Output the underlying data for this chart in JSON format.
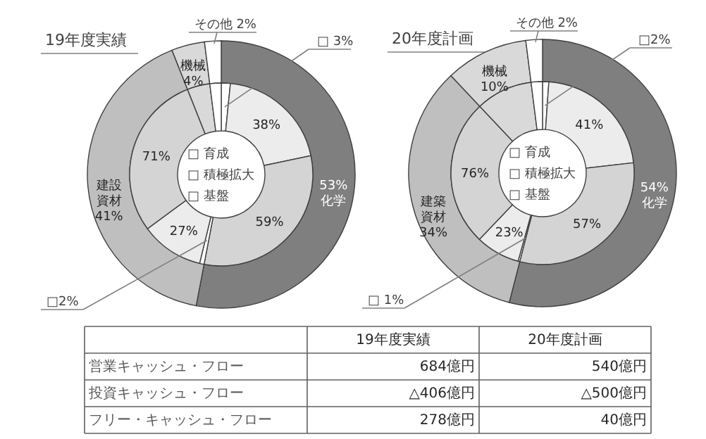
{
  "chart_data": [
    {
      "type": "donut",
      "title": "19年度実績",
      "series": [
        {
          "values": [
            53,
            41,
            4,
            2
          ],
          "colors": [
            "#7f7f7f",
            "#bfbfbf",
            "#d9d9d9",
            "#ffffff"
          ],
          "value_labels": [
            "53%",
            "41%",
            "4%",
            null
          ]
        },
        {
          "values": [
            1.6,
            20.1,
            31.3,
            0.8,
            11.1,
            29.1,
            4,
            2
          ],
          "colors": [
            "#ffffff",
            "#ececec",
            "#d4d4d4",
            "#ffffff",
            "#ececec",
            "#d4d4d4",
            "#d9d9d9",
            "#ffffff"
          ]
        }
      ],
      "annotations": [
        "化学",
        "建設資材",
        "機械",
        "その他 2%",
        "□ 3%",
        "38%",
        "59%",
        "□2%",
        "27%",
        "71%",
        "□ 育成",
        "□ 積極拡大",
        "□ 基盤"
      ]
    },
    {
      "type": "donut",
      "title": "20年度計画",
      "series": [
        {
          "values": [
            54,
            34,
            10,
            2
          ],
          "colors": [
            "#7f7f7f",
            "#bfbfbf",
            "#d9d9d9",
            "#ffffff"
          ],
          "value_labels": [
            "54%",
            "34%",
            "10%",
            null
          ]
        },
        {
          "values": [
            1.1,
            22.1,
            30.8,
            0.3,
            7.8,
            25.9,
            10,
            2
          ],
          "colors": [
            "#ffffff",
            "#ececec",
            "#d4d4d4",
            "#ffffff",
            "#ececec",
            "#d4d4d4",
            "#d9d9d9",
            "#ffffff"
          ]
        }
      ],
      "annotations": [
        "化学",
        "建築資材",
        "機械",
        "その他 2%",
        "□2%",
        "41%",
        "57%",
        "□ 1%",
        "23%",
        "76%",
        "□ 育成",
        "□ 積極拡大",
        "□ 基盤"
      ]
    },
    {
      "type": "other",
      "categories": [
        "19年度実績",
        "20年度計画"
      ],
      "y_categories": [
        "営業キャッシュ・フロー",
        "投資キャッシュ・フロー",
        "フリー・キャッシュ・フロー"
      ],
      "cell_labels": [
        [
          "684億円",
          "540億円"
        ],
        [
          "△406億円",
          "△500億円"
        ],
        [
          "278億円",
          "40億円"
        ]
      ]
    }
  ]
}
